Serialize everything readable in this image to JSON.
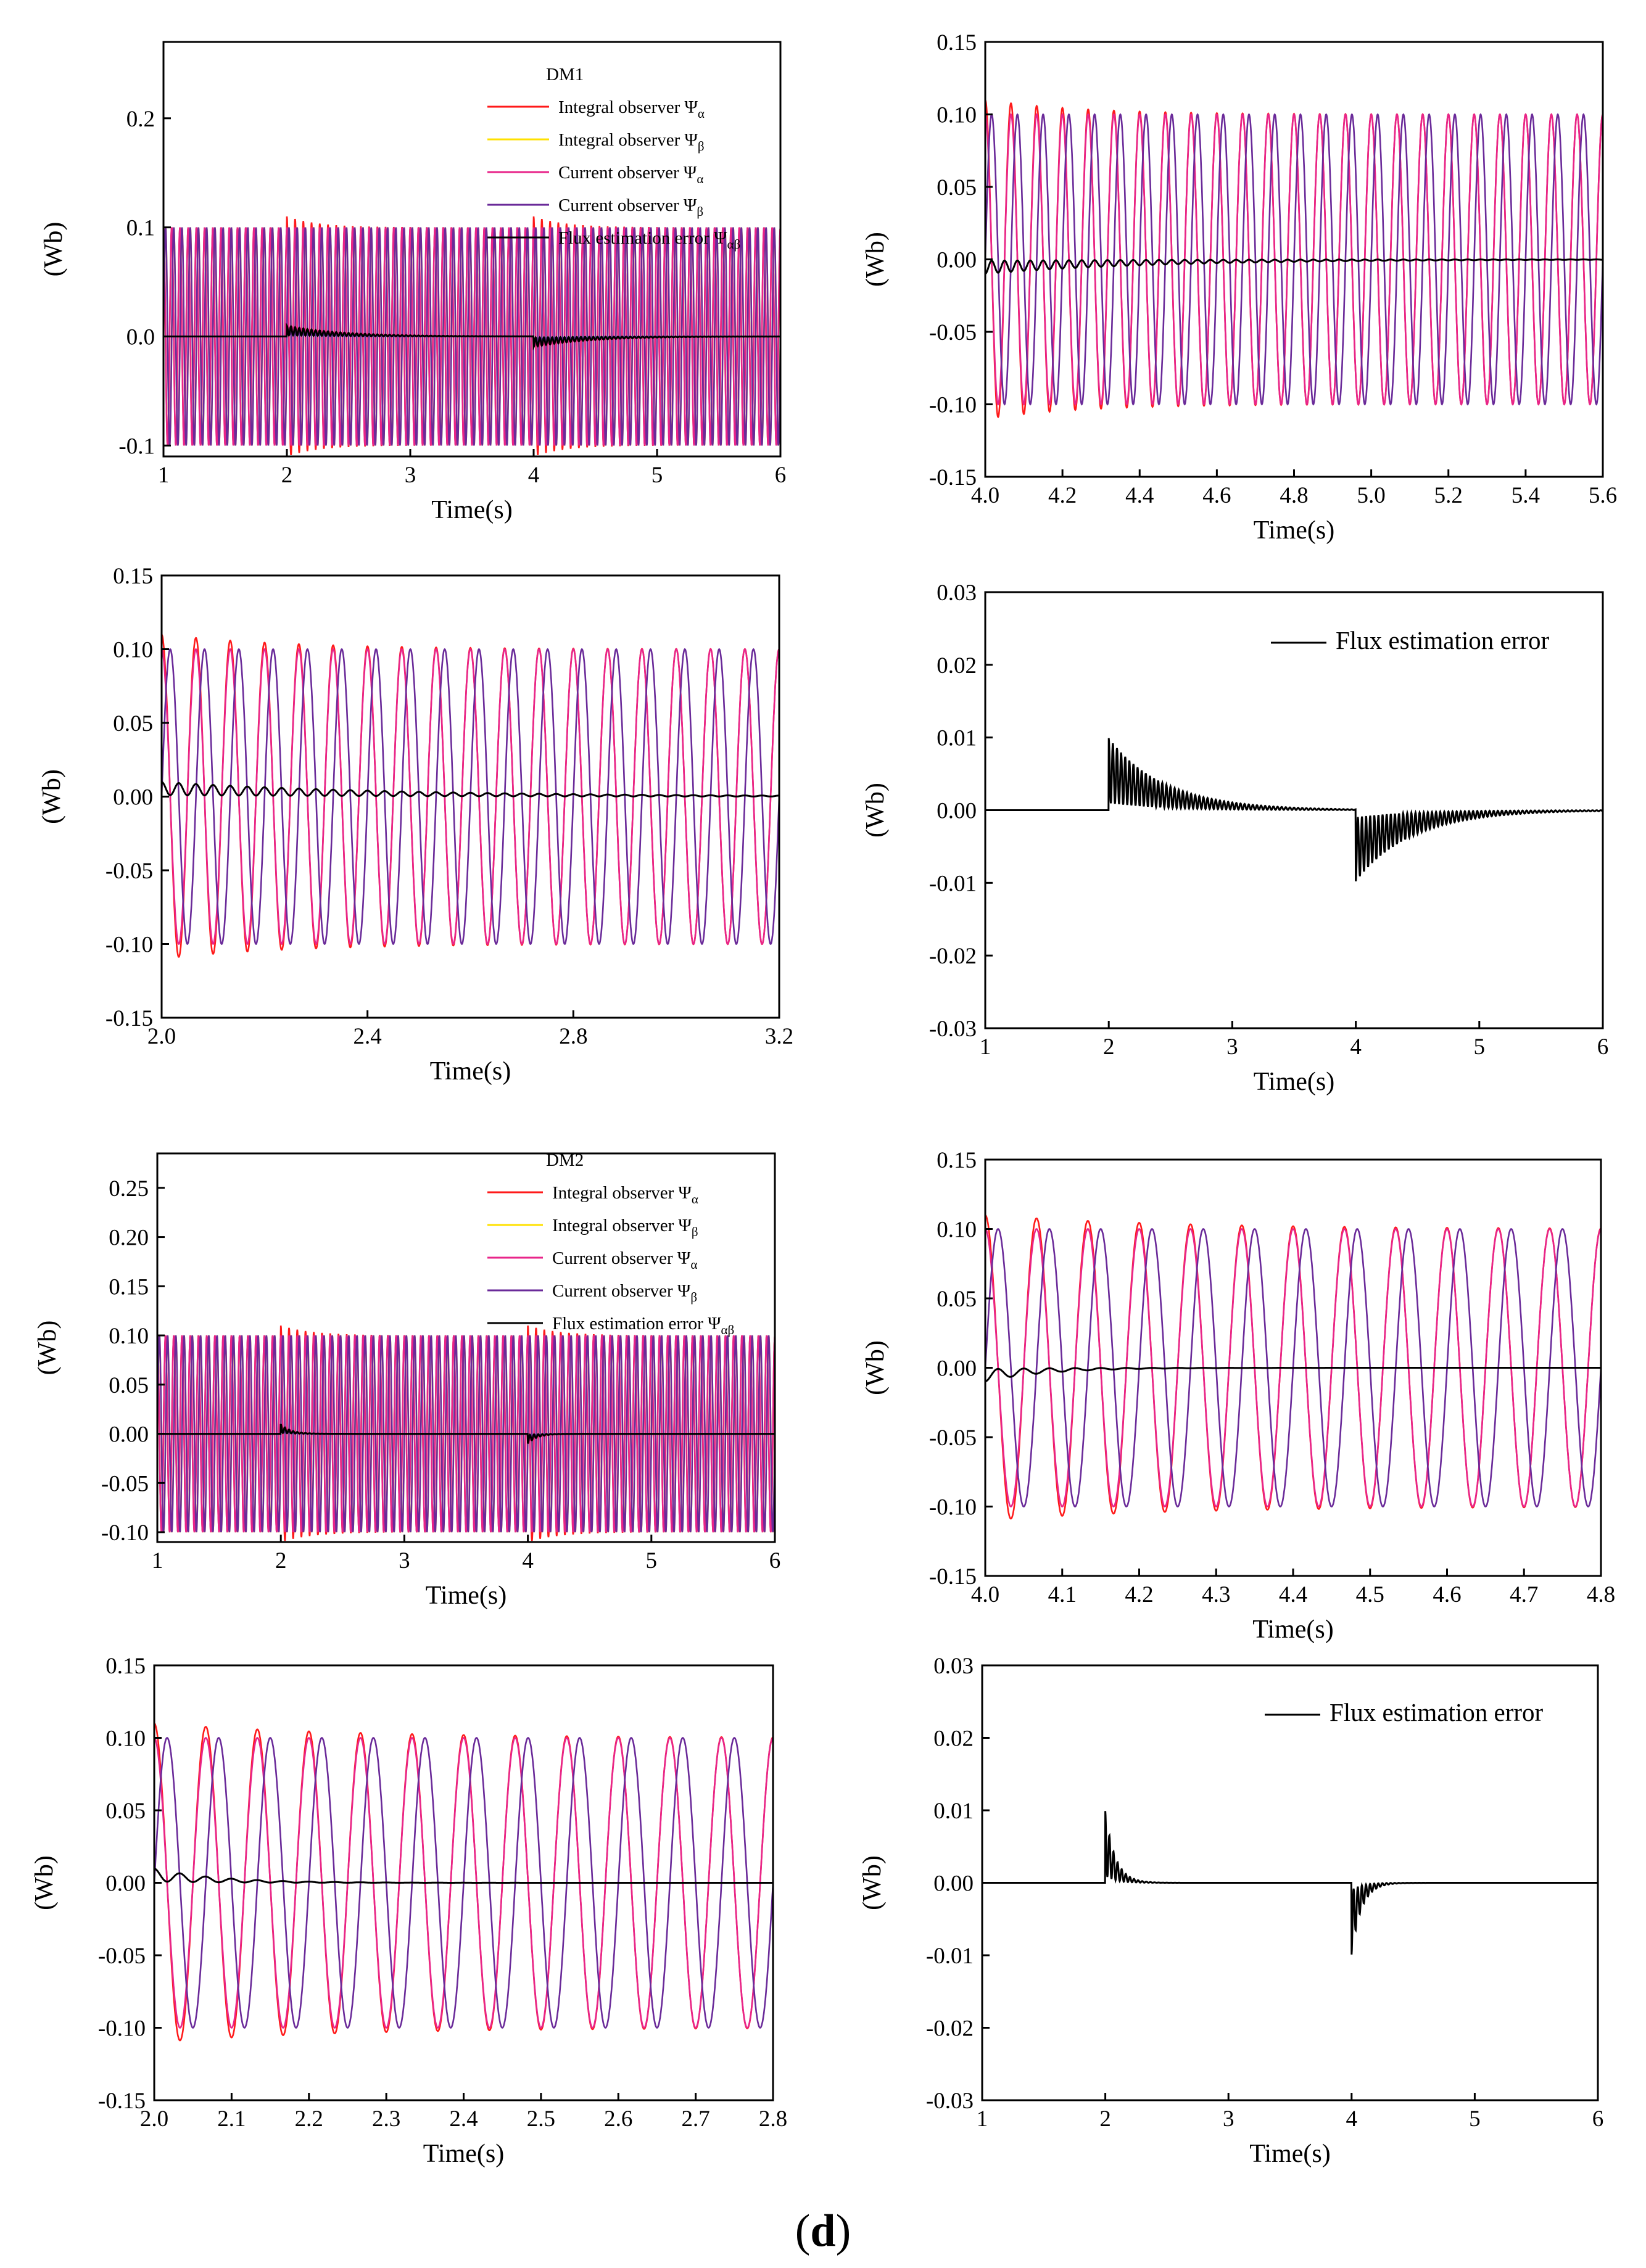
{
  "figure_label": "d",
  "colors": {
    "integral_alpha": "#ff1a1a",
    "integral_beta": "#ffe100",
    "current_alpha": "#e8258a",
    "current_beta": "#6a2a99",
    "error": "#000000"
  },
  "chart_data": [
    {
      "id": "a",
      "type": "line",
      "xlabel": "Time(s)",
      "ylabel": "(Wb)",
      "xlim": [
        1,
        6
      ],
      "ylim": [
        -0.11,
        0.27
      ],
      "xticks": [
        "1",
        "2",
        "3",
        "4",
        "5",
        "6"
      ],
      "yticks": [
        "-0.1",
        "0.0",
        "0.1",
        "0.2"
      ],
      "legend": {
        "title": "DM1",
        "position": "top-right",
        "entries": [
          {
            "label": "Integral observer Ψ",
            "sub": "α"
          },
          {
            "label": "Integral observer Ψ",
            "sub": "β"
          },
          {
            "label": "Current observer Ψ",
            "sub": "α"
          },
          {
            "label": "Current observer Ψ",
            "sub": "β"
          },
          {
            "label": "Flux estimation error Ψ",
            "sub": "αβ"
          }
        ]
      },
      "series": [
        {
          "name": "Integral observer Ψα",
          "amplitude": 0.1,
          "frequency_hz": 15,
          "disturbance_times_s": [
            2.0,
            4.0
          ],
          "peak": 0.11
        },
        {
          "name": "Integral observer Ψβ",
          "amplitude": 0.1,
          "frequency_hz": 15
        },
        {
          "name": "Current observer Ψα",
          "amplitude": 0.1,
          "frequency_hz": 15
        },
        {
          "name": "Current observer Ψβ",
          "amplitude": 0.1,
          "frequency_hz": 15
        },
        {
          "name": "Flux estimation error Ψαβ",
          "events": [
            {
              "t": 2.0,
              "peak": 0.011,
              "decay_s": 0.45
            },
            {
              "t": 4.0,
              "peak": -0.011,
              "decay_s": 0.45
            }
          ]
        }
      ]
    },
    {
      "id": "b",
      "type": "line",
      "xlabel": "Time(s)",
      "ylabel": "(Wb)",
      "xlim": [
        4.0,
        5.6
      ],
      "ylim": [
        -0.15,
        0.15
      ],
      "xticks": [
        "4.0",
        "4.2",
        "4.4",
        "4.6",
        "4.8",
        "5.0",
        "5.2",
        "5.4",
        "5.6"
      ],
      "yticks": [
        "-0.15",
        "-0.10",
        "-0.05",
        "0.00",
        "0.05",
        "0.10",
        "0.15"
      ],
      "series": [
        {
          "name": "Integral observer Ψα",
          "amplitude": 0.1,
          "frequency_hz": 15,
          "disturbance_times_s": [
            4.0
          ],
          "peak": 0.11
        },
        {
          "name": "Current observer Ψα",
          "amplitude": 0.1,
          "frequency_hz": 15
        },
        {
          "name": "Current observer Ψβ",
          "amplitude": 0.1,
          "frequency_hz": 15
        },
        {
          "name": "Flux estimation error Ψαβ",
          "events": [
            {
              "t": 4.0,
              "peak": -0.011,
              "decay_s": 0.45
            }
          ]
        }
      ]
    },
    {
      "id": "c",
      "type": "line",
      "xlabel": "Time(s)",
      "ylabel": "(Wb)",
      "xlim": [
        2.0,
        3.2
      ],
      "ylim": [
        -0.15,
        0.15
      ],
      "xticks": [
        "2.0",
        "2.4",
        "2.8",
        "3.2"
      ],
      "yticks": [
        "-0.15",
        "-0.10",
        "-0.05",
        "0.00",
        "0.05",
        "0.10",
        "0.15"
      ],
      "series": [
        {
          "name": "Integral observer Ψα",
          "amplitude": 0.1,
          "frequency_hz": 15,
          "disturbance_times_s": [
            2.0
          ],
          "peak": 0.11
        },
        {
          "name": "Current observer Ψα",
          "amplitude": 0.1,
          "frequency_hz": 15
        },
        {
          "name": "Current observer Ψβ",
          "amplitude": 0.1,
          "frequency_hz": 15
        },
        {
          "name": "Flux estimation error Ψαβ",
          "events": [
            {
              "t": 2.0,
              "peak": 0.011,
              "decay_s": 0.45
            }
          ]
        }
      ]
    },
    {
      "id": "d",
      "type": "line",
      "xlabel": "Time(s)",
      "ylabel": "(Wb)",
      "xlim": [
        1,
        6
      ],
      "ylim": [
        -0.03,
        0.03
      ],
      "xticks": [
        "1",
        "2",
        "3",
        "4",
        "5",
        "6"
      ],
      "yticks": [
        "-0.03",
        "-0.02",
        "-0.01",
        "0.00",
        "0.01",
        "0.02",
        "0.03"
      ],
      "legend": {
        "position": "top-right",
        "entries": [
          {
            "label": "Flux estimation error",
            "sub": ""
          }
        ]
      },
      "series": [
        {
          "name": "Flux estimation error",
          "events": [
            {
              "t": 2.0,
              "peak": 0.011,
              "decay_s": 0.45
            },
            {
              "t": 4.0,
              "peak": -0.011,
              "decay_s": 0.45
            }
          ]
        }
      ]
    },
    {
      "id": "e",
      "type": "line",
      "xlabel": "Time(s)",
      "ylabel": "(Wb)",
      "xlim": [
        1,
        6
      ],
      "ylim": [
        -0.11,
        0.285
      ],
      "xticks": [
        "1",
        "2",
        "3",
        "4",
        "5",
        "6"
      ],
      "yticks": [
        "-0.10",
        "-0.05",
        "0.00",
        "0.05",
        "0.10",
        "0.15",
        "0.20",
        "0.25"
      ],
      "legend": {
        "title": "DM2",
        "position": "top-right",
        "entries": [
          {
            "label": "Integral observer Ψ",
            "sub": "α"
          },
          {
            "label": "Integral observer Ψ",
            "sub": "β"
          },
          {
            "label": "Current observer Ψ",
            "sub": "α"
          },
          {
            "label": "Current observer Ψ",
            "sub": "β"
          },
          {
            "label": "Flux estimation error Ψ",
            "sub": "αβ"
          }
        ]
      },
      "series": [
        {
          "name": "Integral observer Ψα",
          "amplitude": 0.1,
          "frequency_hz": 15,
          "disturbance_times_s": [
            2.0,
            4.0
          ],
          "peak": 0.11
        },
        {
          "name": "Integral observer Ψβ",
          "amplitude": 0.1,
          "frequency_hz": 15
        },
        {
          "name": "Current observer Ψα",
          "amplitude": 0.1,
          "frequency_hz": 15
        },
        {
          "name": "Current observer Ψβ",
          "amplitude": 0.1,
          "frequency_hz": 15
        },
        {
          "name": "Flux estimation error Ψαβ",
          "events": [
            {
              "t": 2.0,
              "peak": 0.011,
              "decay_s": 0.08
            },
            {
              "t": 4.0,
              "peak": -0.011,
              "decay_s": 0.08
            }
          ]
        }
      ]
    },
    {
      "id": "f",
      "type": "line",
      "xlabel": "Time(s)",
      "ylabel": "(Wb)",
      "xlim": [
        4.0,
        4.8
      ],
      "ylim": [
        -0.15,
        0.15
      ],
      "xticks": [
        "4.0",
        "4.1",
        "4.2",
        "4.3",
        "4.4",
        "4.5",
        "4.6",
        "4.7",
        "4.8"
      ],
      "yticks": [
        "-0.15",
        "-0.10",
        "-0.05",
        "0.00",
        "0.05",
        "0.10",
        "0.15"
      ],
      "series": [
        {
          "name": "Integral observer Ψα",
          "amplitude": 0.1,
          "frequency_hz": 15,
          "disturbance_times_s": [
            4.0
          ],
          "peak": 0.11
        },
        {
          "name": "Current observer Ψα",
          "amplitude": 0.1,
          "frequency_hz": 15
        },
        {
          "name": "Current observer Ψβ",
          "amplitude": 0.1,
          "frequency_hz": 15
        },
        {
          "name": "Flux estimation error Ψαβ",
          "events": [
            {
              "t": 4.0,
              "peak": -0.011,
              "decay_s": 0.08
            }
          ]
        }
      ]
    },
    {
      "id": "g",
      "type": "line",
      "xlabel": "Time(s)",
      "ylabel": "(Wb)",
      "xlim": [
        2.0,
        2.8
      ],
      "ylim": [
        -0.15,
        0.15
      ],
      "xticks": [
        "2.0",
        "2.1",
        "2.2",
        "2.3",
        "2.4",
        "2.5",
        "2.6",
        "2.7",
        "2.8"
      ],
      "yticks": [
        "-0.15",
        "-0.10",
        "-0.05",
        "0.00",
        "0.05",
        "0.10",
        "0.15"
      ],
      "series": [
        {
          "name": "Integral observer Ψα",
          "amplitude": 0.1,
          "frequency_hz": 15,
          "disturbance_times_s": [
            2.0
          ],
          "peak": 0.11
        },
        {
          "name": "Current observer Ψα",
          "amplitude": 0.1,
          "frequency_hz": 15
        },
        {
          "name": "Current observer Ψβ",
          "amplitude": 0.1,
          "frequency_hz": 15
        },
        {
          "name": "Flux estimation error Ψαβ",
          "events": [
            {
              "t": 2.0,
              "peak": 0.011,
              "decay_s": 0.08
            }
          ]
        }
      ]
    },
    {
      "id": "h",
      "type": "line",
      "xlabel": "Time(s)",
      "ylabel": "(Wb)",
      "xlim": [
        1,
        6
      ],
      "ylim": [
        -0.03,
        0.03
      ],
      "xticks": [
        "1",
        "2",
        "3",
        "4",
        "5",
        "6"
      ],
      "yticks": [
        "-0.03",
        "-0.02",
        "-0.01",
        "0.00",
        "0.01",
        "0.02",
        "0.03"
      ],
      "legend": {
        "position": "top-right",
        "entries": [
          {
            "label": "Flux estimation error",
            "sub": ""
          }
        ]
      },
      "series": [
        {
          "name": "Flux estimation error",
          "events": [
            {
              "t": 2.0,
              "peak": 0.011,
              "decay_s": 0.08
            },
            {
              "t": 4.0,
              "peak": -0.011,
              "decay_s": 0.08
            }
          ]
        }
      ]
    }
  ]
}
